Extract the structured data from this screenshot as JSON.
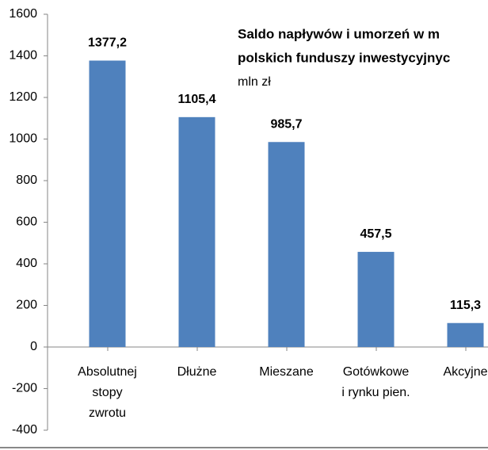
{
  "chart_data": {
    "type": "bar",
    "title": [
      "Saldo napływów i umorzeń w m",
      "polskich funduszy inwestycyjnyc"
    ],
    "subtitle": "mln zł",
    "categories": [
      "Absolutnej\nstopy\nzwrotu",
      "Dłużne",
      "Mieszane",
      "Gotówkowe\ni rynku pien.",
      "Akcyjne"
    ],
    "values": [
      1377.2,
      1105.4,
      985.7,
      457.5,
      115.3
    ],
    "value_labels": [
      "1377,2",
      "1105,4",
      "985,7",
      "457,5",
      "115,3"
    ],
    "color": "#4f81bd",
    "ylim": [
      -400,
      1600
    ],
    "yticks": [
      -400,
      -200,
      0,
      200,
      400,
      600,
      800,
      1000,
      1200,
      1400,
      1600
    ]
  }
}
